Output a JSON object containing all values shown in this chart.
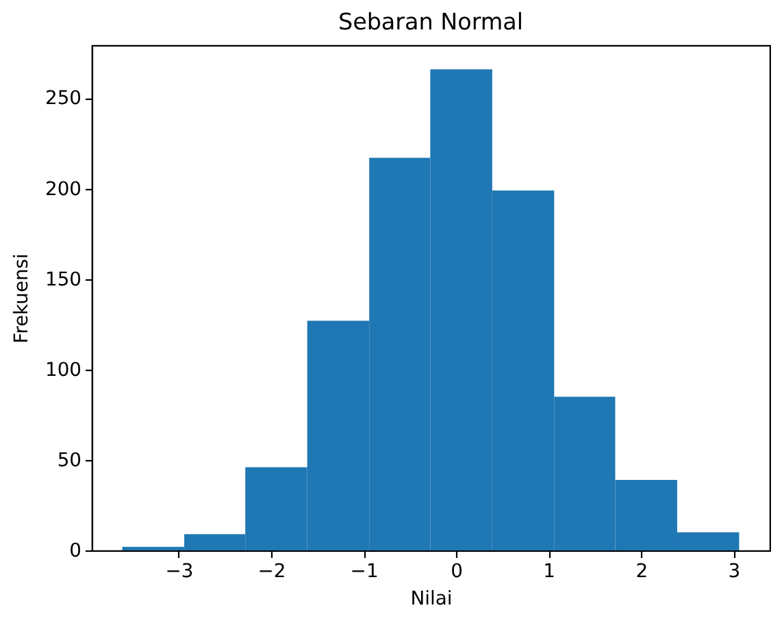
{
  "chart_data": {
    "type": "histogram",
    "title": "Sebaran Normal",
    "xlabel": "Nilai",
    "ylabel": "Frekuensi",
    "bins": [
      -3.61,
      -2.94,
      -2.28,
      -1.61,
      -0.94,
      -0.28,
      0.39,
      1.06,
      1.72,
      2.39,
      3.06
    ],
    "values": [
      2,
      9,
      46,
      127,
      217,
      266,
      199,
      85,
      39,
      10
    ],
    "color": "#1f77b4",
    "xlim": [
      -3.94,
      3.39
    ],
    "ylim": [
      0,
      279.3
    ],
    "xticks": [
      {
        "value": -3,
        "label": "−3"
      },
      {
        "value": -2,
        "label": "−2"
      },
      {
        "value": -1,
        "label": "−1"
      },
      0,
      1,
      2,
      3
    ],
    "yticks": [
      0,
      50,
      100,
      150,
      200,
      250
    ],
    "grid": false
  }
}
